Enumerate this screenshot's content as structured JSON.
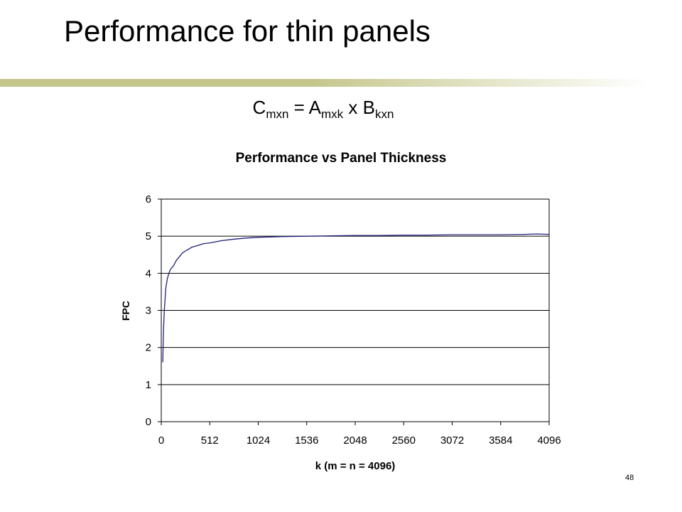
{
  "slide": {
    "title": "Performance for thin panels",
    "formula": {
      "c": "C",
      "c_sub": "mxn",
      "eq": " = ",
      "a": "A",
      "a_sub": "mxk",
      "x": " x ",
      "b": "B",
      "b_sub": "kxn"
    },
    "page_number": "48",
    "accent_color": "#c4c68a"
  },
  "chart_data": {
    "type": "line",
    "title": "Performance vs Panel Thickness",
    "xlabel": "k (m = n = 4096)",
    "ylabel": "FPC",
    "xlim": [
      0,
      4096
    ],
    "ylim": [
      0,
      6
    ],
    "x_ticks": [
      0,
      512,
      1024,
      1536,
      2048,
      2560,
      3072,
      3584,
      4096
    ],
    "y_ticks": [
      0,
      1,
      2,
      3,
      4,
      5,
      6
    ],
    "grid": "horizontal",
    "legend": "none",
    "line_color": "#1f1f7a",
    "series": [
      {
        "x": [
          16,
          24,
          32,
          40,
          48,
          64,
          80,
          96,
          112,
          128,
          160,
          192,
          224,
          256,
          288,
          320,
          384,
          448,
          512,
          576,
          640,
          768,
          896,
          1024,
          1152,
          1280,
          1536,
          1792,
          2048,
          2304,
          2560,
          2816,
          3072,
          3328,
          3584,
          3840,
          3968,
          4096
        ],
        "y": [
          1.6,
          2.5,
          3.0,
          3.3,
          3.6,
          3.85,
          4.0,
          4.1,
          4.15,
          4.2,
          4.35,
          4.45,
          4.55,
          4.6,
          4.65,
          4.7,
          4.75,
          4.8,
          4.82,
          4.85,
          4.88,
          4.92,
          4.95,
          4.97,
          4.98,
          4.99,
          5.0,
          5.01,
          5.02,
          5.02,
          5.03,
          5.03,
          5.04,
          5.04,
          5.04,
          5.05,
          5.06,
          5.05
        ]
      }
    ]
  }
}
